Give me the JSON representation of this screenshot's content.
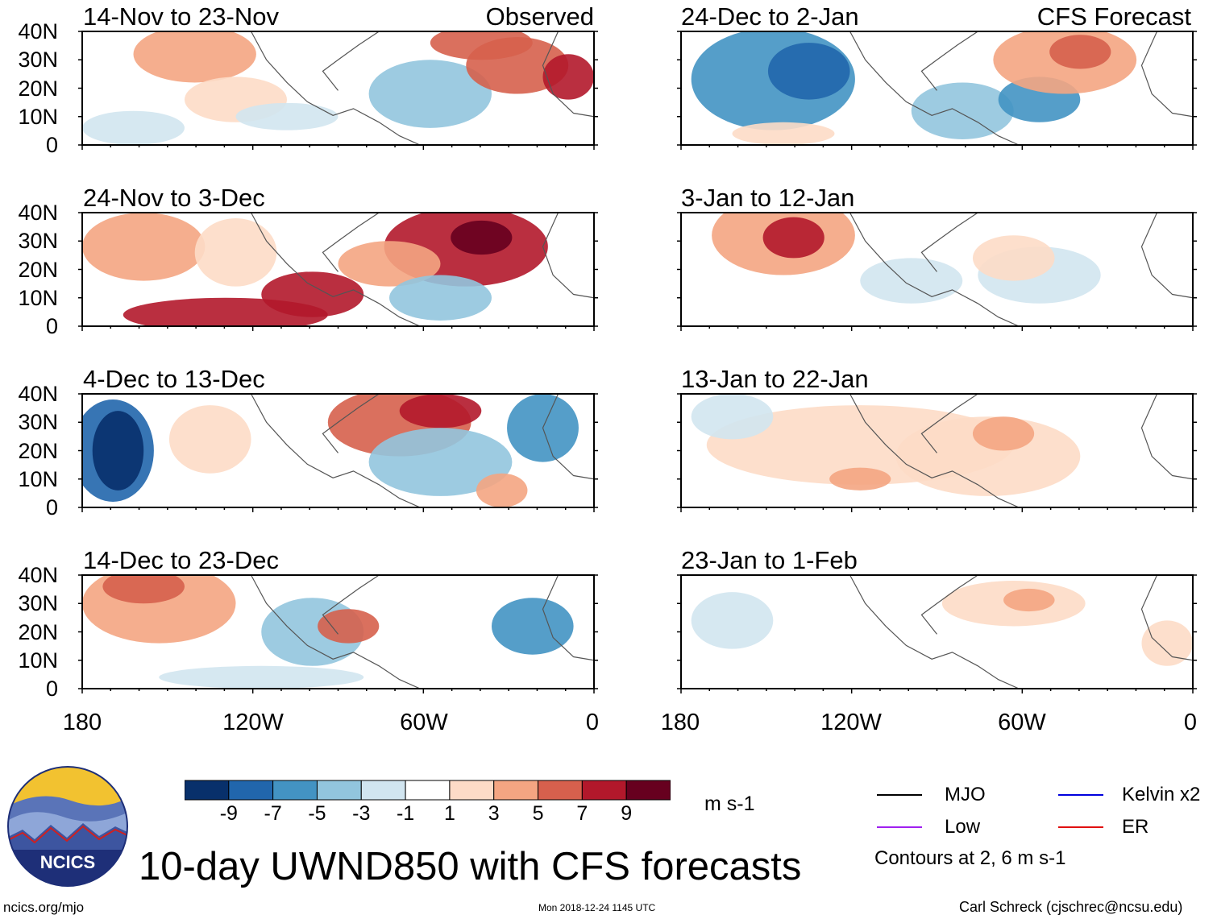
{
  "panels": [
    {
      "title": "14-Nov to 23-Nov",
      "label": "Observed"
    },
    {
      "title": "24-Dec to 2-Jan",
      "label": "CFS Forecast"
    },
    {
      "title": "24-Nov to 3-Dec",
      "label": ""
    },
    {
      "title": "3-Jan to 12-Jan",
      "label": ""
    },
    {
      "title": "4-Dec to 13-Dec",
      "label": ""
    },
    {
      "title": "13-Jan to 22-Jan",
      "label": ""
    },
    {
      "title": "14-Dec to 23-Dec",
      "label": ""
    },
    {
      "title": "23-Jan to 1-Feb",
      "label": ""
    }
  ],
  "lat_labels": [
    "40N",
    "30N",
    "20N",
    "10N",
    "0"
  ],
  "lon_labels": [
    "180",
    "120W",
    "60W",
    "0"
  ],
  "colorbar": {
    "ticks": [
      "-9",
      "-7",
      "-5",
      "-3",
      "-1",
      "1",
      "3",
      "5",
      "7",
      "9"
    ],
    "units": "m s-1",
    "colors": [
      "#08306b",
      "#2166ac",
      "#4393c3",
      "#92c5de",
      "#d1e5f0",
      "#ffffff",
      "#fddbc7",
      "#f4a582",
      "#d6604d",
      "#b2182b",
      "#67001f"
    ]
  },
  "legend": {
    "items": [
      {
        "label": "MJO",
        "color": "#000000"
      },
      {
        "label": "Kelvin x2",
        "color": "#0000dd"
      },
      {
        "label": "Low",
        "color": "#a020f0"
      },
      {
        "label": "ER",
        "color": "#e01010"
      }
    ],
    "note": "Contours at 2, 6 m s-1"
  },
  "logo_text": "NCICS",
  "main_title": "10-day UWND850 with CFS forecasts",
  "footer": {
    "left": "ncics.org/mjo",
    "center": "Mon 2018-12-24 1145 UTC",
    "right": "Carl Schreck (cjschrec@ncsu.edu)"
  }
}
